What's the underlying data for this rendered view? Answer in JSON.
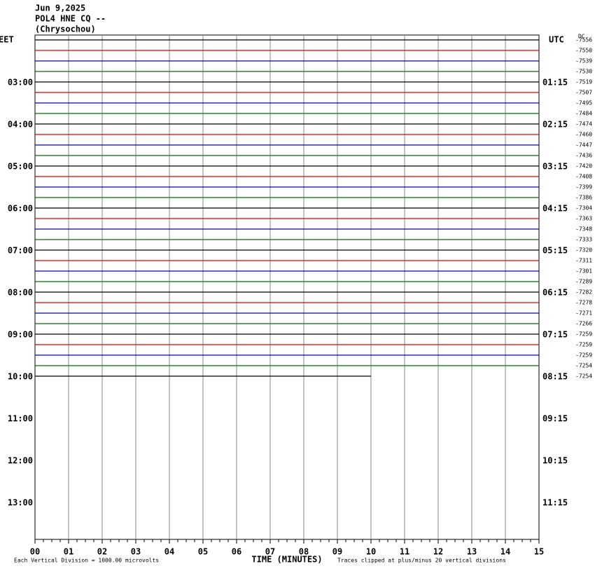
{
  "header": {
    "date": "Jun 9,2025",
    "station": "POL4 HNE CQ --",
    "location": "(Chrysochou)"
  },
  "left_axis": {
    "title": "EET",
    "labels": [
      "03:00",
      "04:00",
      "05:00",
      "06:00",
      "07:00",
      "08:00",
      "09:00",
      "10:00",
      "11:00",
      "12:00",
      "13:00"
    ]
  },
  "right_axis": {
    "title": "UTC",
    "labels": [
      "01:15",
      "02:15",
      "03:15",
      "04:15",
      "05:15",
      "06:15",
      "07:15",
      "08:15",
      "09:15",
      "10:15",
      "11:15"
    ]
  },
  "dc_label": "DC",
  "trace_colors": [
    "#000000",
    "#e00000",
    "#0000c0",
    "#007000"
  ],
  "offsets": [
    -7556,
    -7550,
    -7539,
    -7530,
    -7519,
    -7507,
    -7495,
    -7484,
    -7474,
    -7460,
    -7447,
    -7436,
    -7420,
    -7408,
    -7399,
    -7386,
    -7304,
    -7363,
    -7348,
    -7333,
    -7320,
    -7311,
    -7301,
    -7289,
    -7282,
    -7278,
    -7271,
    -7266,
    -7259,
    -7259,
    -7259,
    -7254,
    -7254
  ],
  "xticks": [
    "00",
    "01",
    "02",
    "03",
    "04",
    "05",
    "06",
    "07",
    "08",
    "09",
    "10",
    "11",
    "12",
    "13",
    "14",
    "15"
  ],
  "x_title": "TIME (MINUTES)",
  "scale_note": "Each Vertical Division = 1000.00 microvolts",
  "clip_note": "Traces clipped at plus/minus 20 vertical divisions"
}
